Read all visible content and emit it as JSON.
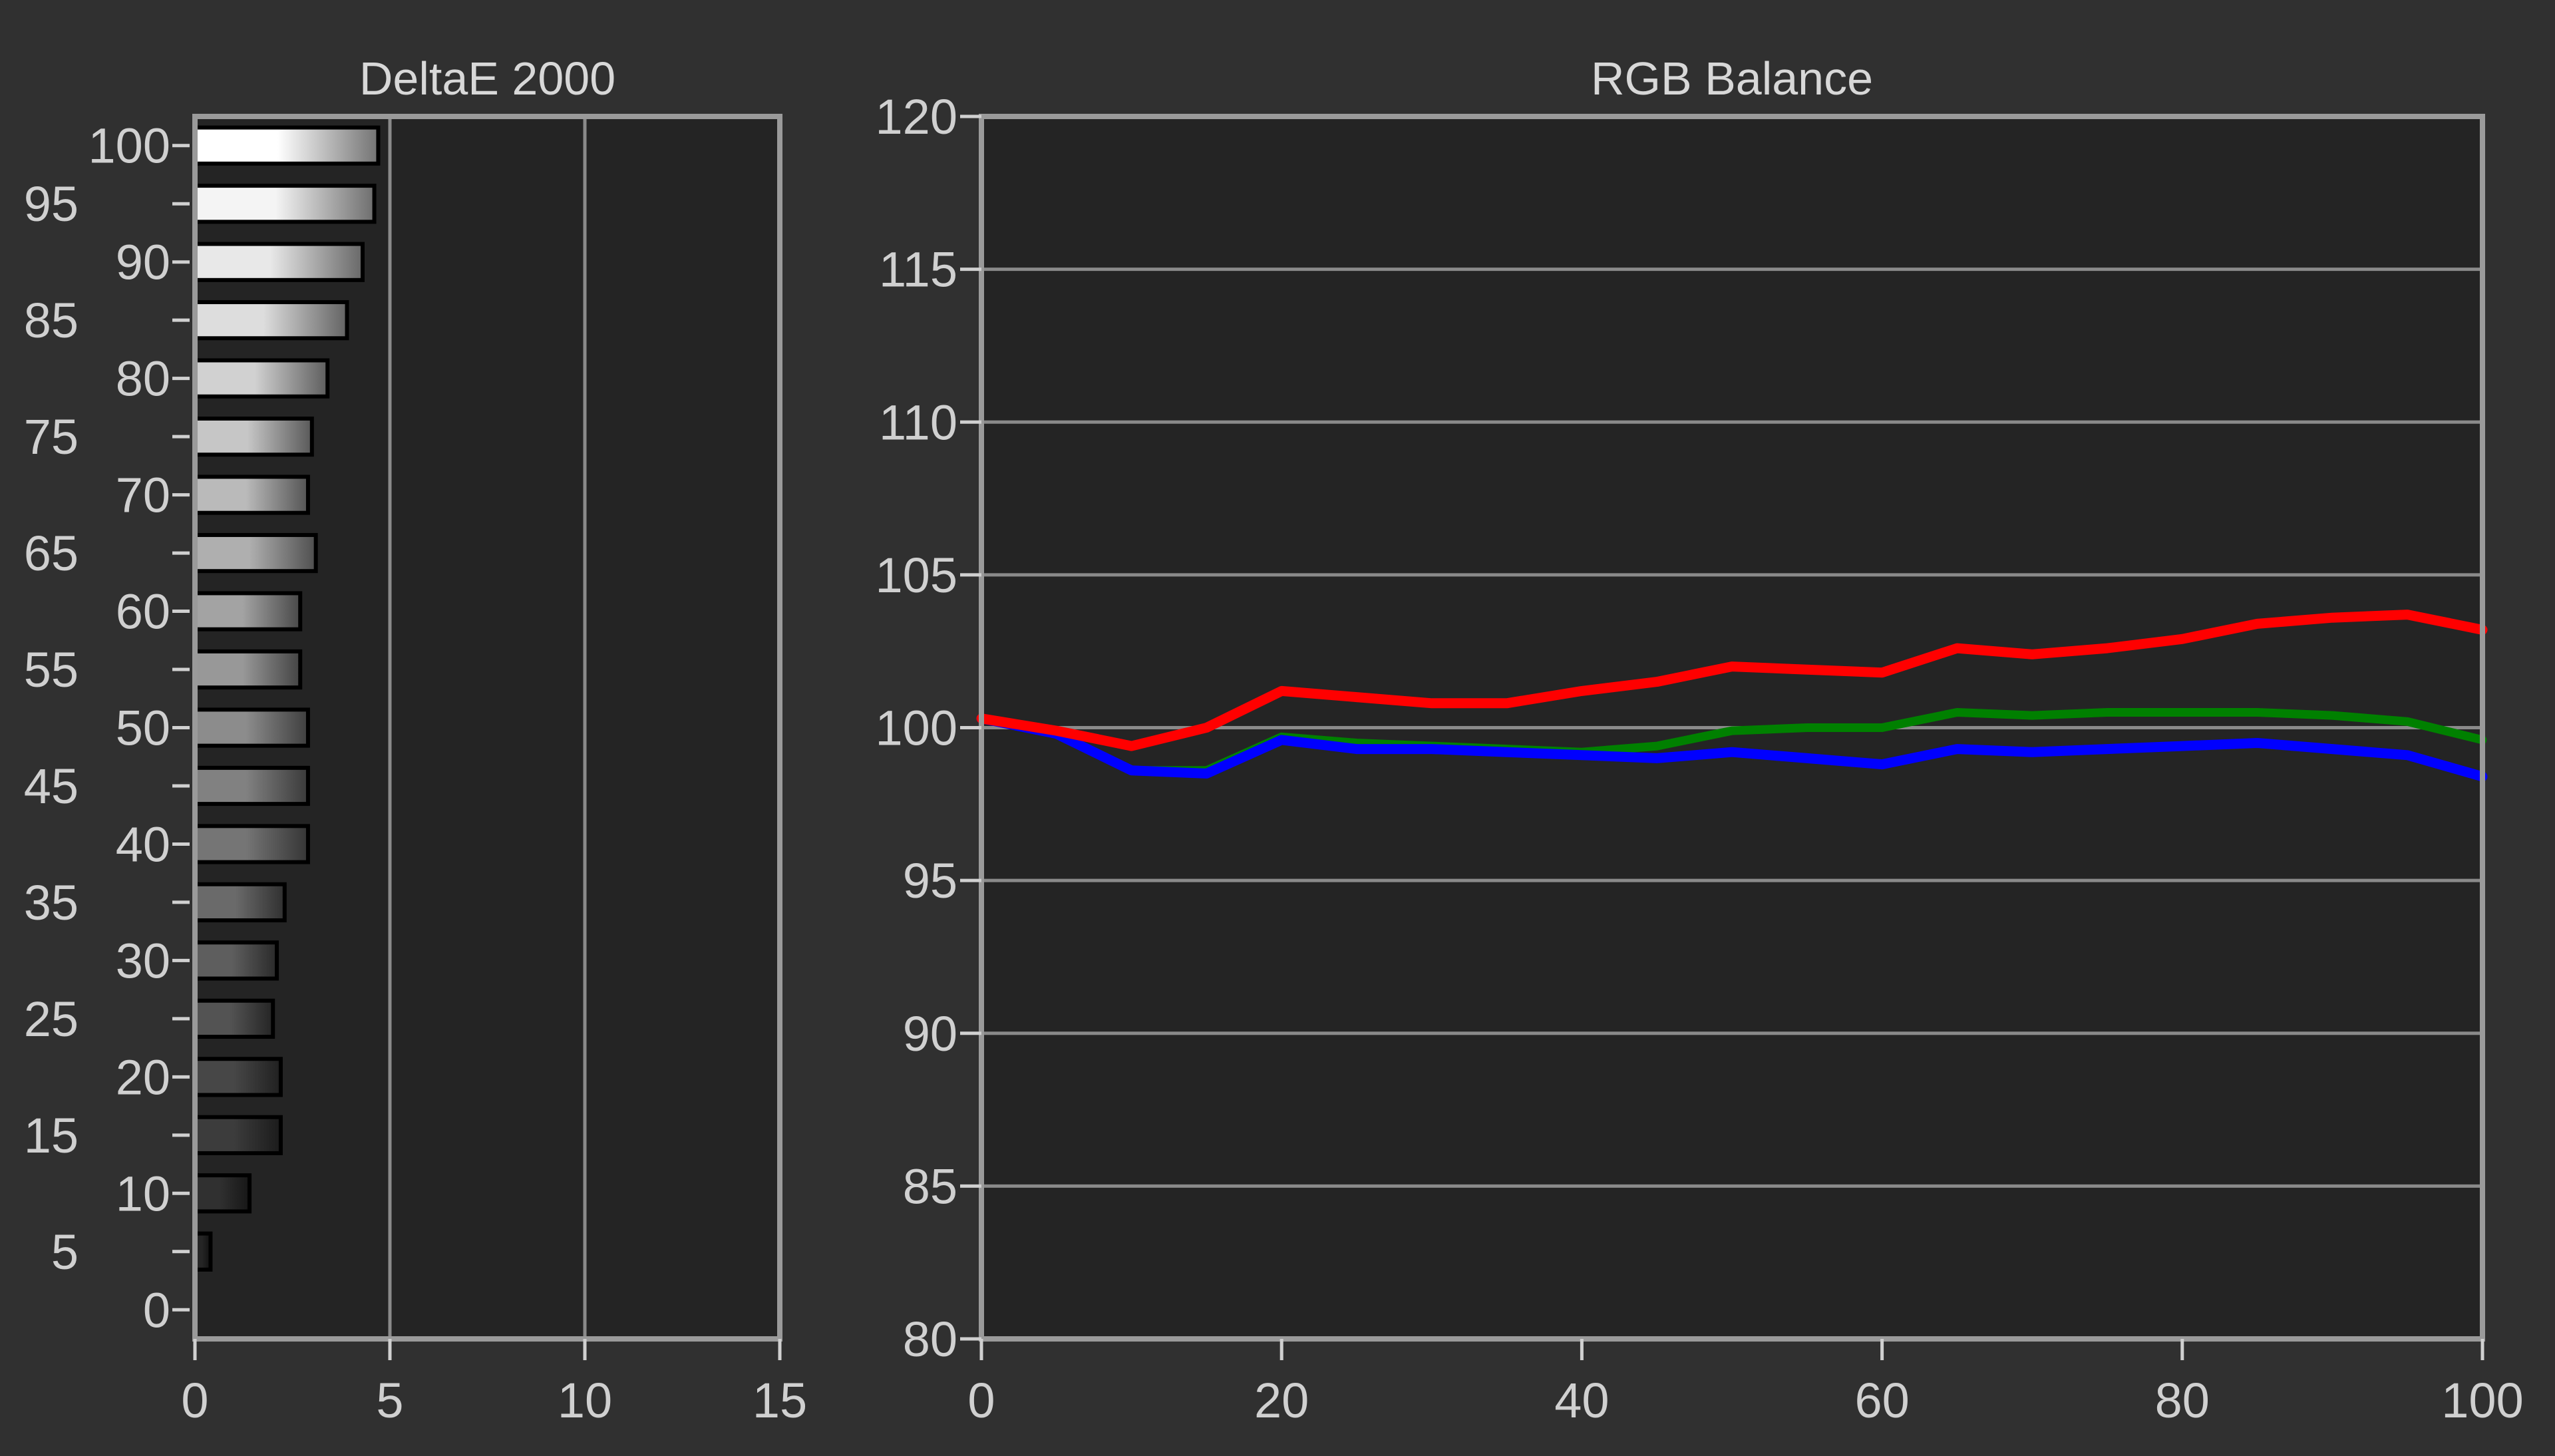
{
  "chart_data": [
    {
      "type": "bar",
      "title": "DeltaE 2000",
      "orientation": "horizontal",
      "categories": [
        0,
        5,
        10,
        15,
        20,
        25,
        30,
        35,
        40,
        45,
        50,
        55,
        60,
        65,
        70,
        75,
        80,
        85,
        90,
        95,
        100
      ],
      "y_tick_labels": [
        "0",
        "5",
        "10",
        "15",
        "20",
        "25",
        "30",
        "35",
        "40",
        "45",
        "50",
        "55",
        "60",
        "65",
        "70",
        "75",
        "80",
        "85",
        "90",
        "95",
        "100"
      ],
      "values": [
        0.0,
        0.4,
        1.4,
        2.2,
        2.2,
        2.0,
        2.1,
        2.3,
        2.9,
        2.9,
        2.9,
        2.7,
        2.7,
        3.1,
        2.9,
        3.0,
        3.4,
        3.9,
        4.3,
        4.6,
        4.7
      ],
      "xlim": [
        0,
        15
      ],
      "x_ticks": [
        "0",
        "5",
        "10",
        "15"
      ],
      "grid": "vertical",
      "bar_fill": "grayscale gradient matching each stimulus level"
    },
    {
      "type": "line",
      "title": "RGB Balance",
      "x": [
        0,
        5,
        10,
        15,
        20,
        25,
        30,
        35,
        40,
        45,
        50,
        55,
        60,
        65,
        70,
        75,
        80,
        85,
        90,
        95,
        100
      ],
      "series": [
        {
          "color": "#1aff1a",
          "values": [
            100.3,
            99.8,
            98.6,
            98.6,
            99.7,
            99.5,
            99.4,
            99.3,
            99.2,
            99.4,
            99.9,
            100.0,
            100.0,
            100.5,
            100.4,
            100.5,
            100.5,
            100.5,
            100.4,
            100.2,
            99.6
          ]
        },
        {
          "color": "#1a1aff",
          "values": [
            100.3,
            99.8,
            98.6,
            98.5,
            99.6,
            99.3,
            99.3,
            99.2,
            99.1,
            99.0,
            99.2,
            99.0,
            98.8,
            99.3,
            99.2,
            99.3,
            99.4,
            99.5,
            99.3,
            99.1,
            98.4
          ]
        },
        {
          "color": "#ff1a1a",
          "values": [
            100.3,
            99.9,
            99.4,
            100.0,
            101.2,
            101.0,
            100.8,
            100.8,
            101.2,
            101.5,
            102.0,
            101.9,
            101.8,
            102.6,
            102.4,
            102.6,
            102.9,
            103.4,
            103.6,
            103.7,
            103.2
          ]
        }
      ],
      "series_colors_display": {
        "red": "#ff0000",
        "green": "#008000",
        "blue": "#0000ff"
      },
      "xlim": [
        0,
        100
      ],
      "ylim": [
        80,
        120
      ],
      "x_ticks": [
        "0",
        "20",
        "40",
        "60",
        "80",
        "100"
      ],
      "y_ticks": [
        "80",
        "85",
        "90",
        "95",
        "100",
        "105",
        "110",
        "115",
        "120"
      ],
      "grid": "horizontal"
    }
  ],
  "colors": {
    "background": "#303030",
    "plot_background": "#242424",
    "frame": "#9a9a9a",
    "text": "#d0d0d0"
  }
}
